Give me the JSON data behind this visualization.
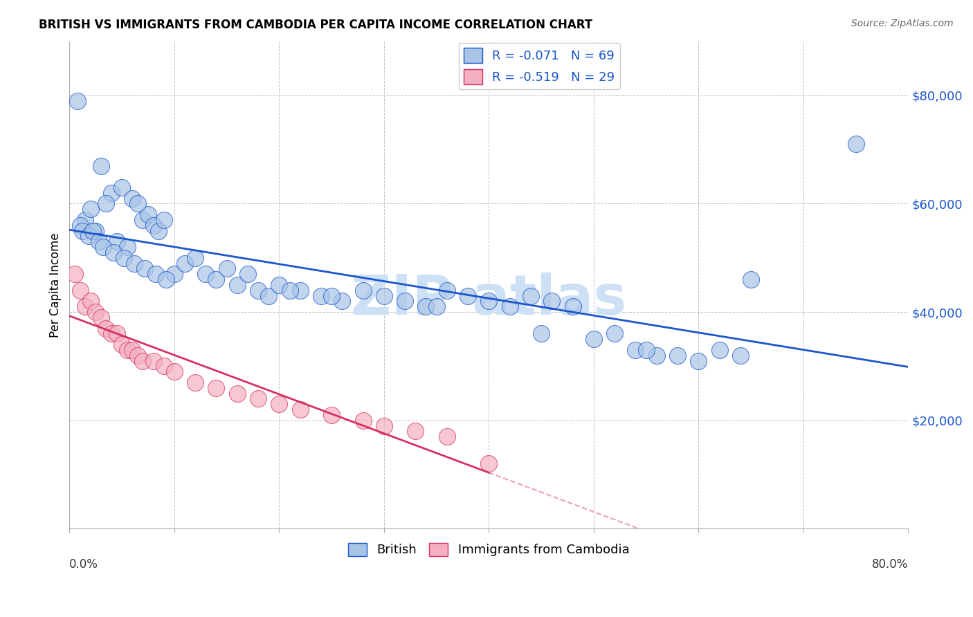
{
  "title": "BRITISH VS IMMIGRANTS FROM CAMBODIA PER CAPITA INCOME CORRELATION CHART",
  "source": "Source: ZipAtlas.com",
  "ylabel": "Per Capita Income",
  "r1": -0.071,
  "n1": 69,
  "r2": -0.519,
  "n2": 29,
  "color_british": "#a8c4e6",
  "color_cambodia": "#f4b0c0",
  "color_british_line": "#1a56cc",
  "color_cambodia_line": "#d63060",
  "watermark_color": "#cde0f5",
  "british_x": [
    0.8,
    3.0,
    4.0,
    5.0,
    6.0,
    7.0,
    7.5,
    8.0,
    8.5,
    9.0,
    1.5,
    2.0,
    2.5,
    3.5,
    4.5,
    5.5,
    6.5,
    10.0,
    11.0,
    12.0,
    13.0,
    14.0,
    15.0,
    16.0,
    17.0,
    18.0,
    19.0,
    20.0,
    22.0,
    24.0,
    26.0,
    28.0,
    30.0,
    32.0,
    34.0,
    36.0,
    38.0,
    40.0,
    42.0,
    44.0,
    46.0,
    48.0,
    50.0,
    52.0,
    54.0,
    56.0,
    58.0,
    60.0,
    62.0,
    64.0,
    1.0,
    1.2,
    1.8,
    2.2,
    2.8,
    3.2,
    4.2,
    5.2,
    6.2,
    7.2,
    8.2,
    9.2,
    21.0,
    25.0,
    35.0,
    45.0,
    55.0,
    65.0,
    75.0
  ],
  "british_y": [
    79000,
    67000,
    62000,
    63000,
    61000,
    57000,
    58000,
    56000,
    55000,
    57000,
    57000,
    59000,
    55000,
    60000,
    53000,
    52000,
    60000,
    47000,
    49000,
    50000,
    47000,
    46000,
    48000,
    45000,
    47000,
    44000,
    43000,
    45000,
    44000,
    43000,
    42000,
    44000,
    43000,
    42000,
    41000,
    44000,
    43000,
    42000,
    41000,
    43000,
    42000,
    41000,
    35000,
    36000,
    33000,
    32000,
    32000,
    31000,
    33000,
    32000,
    56000,
    55000,
    54000,
    55000,
    53000,
    52000,
    51000,
    50000,
    49000,
    48000,
    47000,
    46000,
    44000,
    43000,
    41000,
    36000,
    33000,
    46000,
    71000
  ],
  "cambodia_x": [
    0.5,
    1.0,
    1.5,
    2.0,
    2.5,
    3.0,
    3.5,
    4.0,
    4.5,
    5.0,
    5.5,
    6.0,
    6.5,
    7.0,
    8.0,
    9.0,
    10.0,
    12.0,
    14.0,
    16.0,
    18.0,
    20.0,
    22.0,
    25.0,
    28.0,
    30.0,
    33.0,
    36.0,
    40.0
  ],
  "cambodia_y": [
    47000,
    44000,
    41000,
    42000,
    40000,
    39000,
    37000,
    36000,
    36000,
    34000,
    33000,
    33000,
    32000,
    31000,
    31000,
    30000,
    29000,
    27000,
    26000,
    25000,
    24000,
    23000,
    22000,
    21000,
    20000,
    19000,
    18000,
    17000,
    12000
  ]
}
